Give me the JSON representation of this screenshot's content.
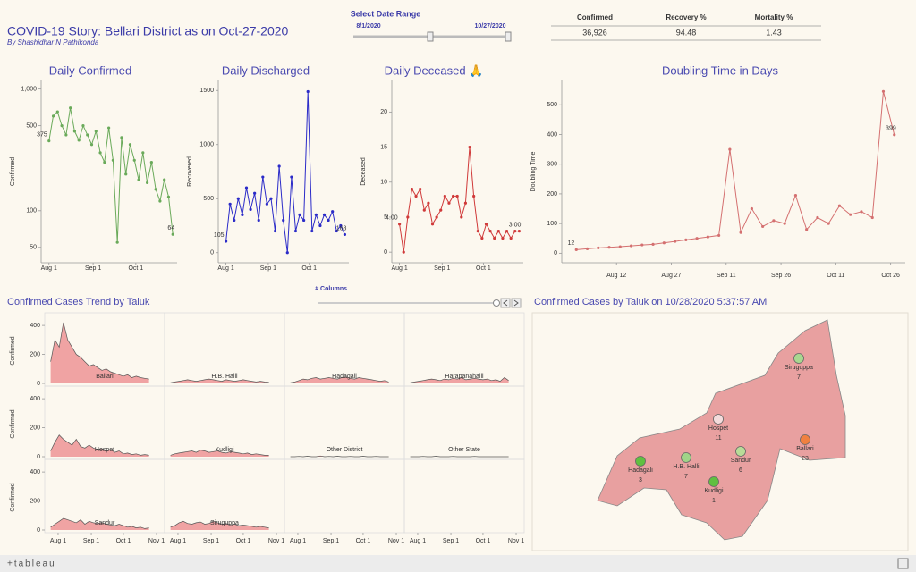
{
  "header": {
    "title": "COVID-19 Story: Bellari District as on Oct-27-2020",
    "byline": "By Shashidhar N Pathikonda"
  },
  "date_range": {
    "label": "Select Date Range",
    "start": "8/1/2020",
    "end": "10/27/2020"
  },
  "kpi": {
    "headers": [
      "Confirmed",
      "Recovery %",
      "Mortality %"
    ],
    "values": [
      "36,926",
      "94.48",
      "1.43"
    ]
  },
  "chart_data": [
    {
      "type": "line",
      "title": "Daily Confirmed",
      "y_label": "Confirmed",
      "color": "#6aaa5a",
      "log_scale": true,
      "x": [
        "Aug 1",
        "Aug 4",
        "Aug 7",
        "Aug 10",
        "Aug 13",
        "Aug 16",
        "Aug 19",
        "Aug 22",
        "Aug 25",
        "Aug 28",
        "Aug 31",
        "Sep 3",
        "Sep 6",
        "Sep 9",
        "Sep 12",
        "Sep 15",
        "Sep 18",
        "Sep 21",
        "Sep 24",
        "Sep 27",
        "Sep 30",
        "Oct 3",
        "Oct 6",
        "Oct 9",
        "Oct 12",
        "Oct 15",
        "Oct 18",
        "Oct 21",
        "Oct 24",
        "Oct 27"
      ],
      "values": [
        375,
        600,
        650,
        500,
        420,
        700,
        450,
        380,
        500,
        420,
        350,
        450,
        300,
        250,
        480,
        260,
        55,
        400,
        200,
        350,
        260,
        180,
        300,
        170,
        250,
        150,
        120,
        180,
        130,
        64
      ],
      "xlim": [
        "Jul 29",
        "Oct 30"
      ],
      "xticks": [
        "Aug 1",
        "Sep 1",
        "Oct 1"
      ],
      "ylim": [
        40,
        1100
      ],
      "yticks": [
        50,
        100,
        500,
        {
          "value": 1000,
          "label": "1,000"
        }
      ]
    },
    {
      "type": "line",
      "title": "Daily Discharged",
      "y_label": "Recovered",
      "color": "#2b2bc8",
      "annotation": "# Columns",
      "x": [
        "Aug 1",
        "Aug 4",
        "Aug 7",
        "Aug 10",
        "Aug 13",
        "Aug 16",
        "Aug 19",
        "Aug 22",
        "Aug 25",
        "Aug 28",
        "Aug 31",
        "Sep 3",
        "Sep 6",
        "Sep 9",
        "Sep 12",
        "Sep 15",
        "Sep 18",
        "Sep 21",
        "Sep 24",
        "Sep 27",
        "Sep 30",
        "Oct 3",
        "Oct 6",
        "Oct 9",
        "Oct 12",
        "Oct 15",
        "Oct 18",
        "Oct 21",
        "Oct 24",
        "Oct 27"
      ],
      "values": [
        105,
        450,
        300,
        500,
        350,
        600,
        400,
        550,
        300,
        700,
        450,
        500,
        200,
        800,
        300,
        0,
        700,
        200,
        350,
        300,
        1490,
        200,
        350,
        250,
        350,
        300,
        380,
        200,
        250,
        168
      ],
      "xlim": [
        "Jul 29",
        "Oct 30"
      ],
      "xticks": [
        "Aug 1",
        "Sep 1",
        "Oct 1"
      ],
      "ylim": [
        -60,
        1560
      ],
      "yticks": [
        0,
        500,
        1000,
        1500
      ]
    },
    {
      "type": "line",
      "title": "Daily Deceased 🙏",
      "y_label": "Deceased",
      "color": "#d03a3a",
      "x": [
        "Aug 1",
        "Aug 4",
        "Aug 7",
        "Aug 10",
        "Aug 13",
        "Aug 16",
        "Aug 19",
        "Aug 22",
        "Aug 25",
        "Aug 28",
        "Aug 31",
        "Sep 3",
        "Sep 6",
        "Sep 9",
        "Sep 12",
        "Sep 15",
        "Sep 18",
        "Sep 21",
        "Sep 24",
        "Sep 27",
        "Sep 30",
        "Oct 3",
        "Oct 6",
        "Oct 9",
        "Oct 12",
        "Oct 15",
        "Oct 18",
        "Oct 21",
        "Oct 24",
        "Oct 27"
      ],
      "values": [
        4,
        0,
        5,
        9,
        8,
        9,
        6,
        7,
        4,
        5,
        6,
        8,
        7,
        8,
        8,
        5,
        7,
        15,
        8,
        3,
        2,
        4,
        3,
        2,
        3,
        2,
        3,
        2,
        3,
        3
      ],
      "value_labels": [
        "4.00",
        null,
        null,
        null,
        null,
        null,
        null,
        null,
        null,
        null,
        null,
        null,
        null,
        null,
        null,
        null,
        null,
        null,
        null,
        null,
        null,
        null,
        null,
        null,
        null,
        null,
        null,
        null,
        null,
        "3.00"
      ],
      "xlim": [
        "Jul 29",
        "Oct 30"
      ],
      "xticks": [
        "Aug 1",
        "Sep 1",
        "Oct 1"
      ],
      "ylim": [
        -1,
        24
      ],
      "yticks": [
        0,
        5,
        10,
        15,
        20
      ]
    },
    {
      "type": "line",
      "title": "Doubling Time in Days",
      "y_label": "Doubling Time",
      "color": "#d47070",
      "x": [
        "Aug 1",
        "Aug 4",
        "Aug 7",
        "Aug 10",
        "Aug 13",
        "Aug 16",
        "Aug 19",
        "Aug 22",
        "Aug 25",
        "Aug 28",
        "Aug 31",
        "Sep 3",
        "Sep 6",
        "Sep 9",
        "Sep 12",
        "Sep 15",
        "Sep 18",
        "Sep 21",
        "Sep 24",
        "Sep 27",
        "Sep 30",
        "Oct 3",
        "Oct 6",
        "Oct 9",
        "Oct 12",
        "Oct 15",
        "Oct 18",
        "Oct 21",
        "Oct 24",
        "Oct 27"
      ],
      "values": [
        12,
        15,
        18,
        20,
        22,
        25,
        28,
        30,
        35,
        40,
        45,
        50,
        55,
        60,
        350,
        70,
        150,
        90,
        110,
        100,
        195,
        80,
        120,
        100,
        160,
        130,
        140,
        120,
        545,
        399
      ],
      "xlim": [
        "Jul 29",
        "Oct 30"
      ],
      "xticks": [
        "Aug 12",
        "Aug 27",
        "Sep 11",
        "Sep 26",
        "Oct 11",
        "Oct 26"
      ],
      "ylim": [
        -20,
        570
      ],
      "yticks": [
        0,
        100,
        200,
        300,
        400,
        500
      ]
    },
    {
      "type": "area",
      "title": "Confirmed Cases Trend by Taluk",
      "y_label": "Confirmed",
      "color": "#f0a3a3",
      "line_color": "#555555",
      "x": [
        "Jul 25",
        "Jul 29",
        "Aug 2",
        "Aug 6",
        "Aug 10",
        "Aug 14",
        "Aug 18",
        "Aug 22",
        "Aug 26",
        "Aug 30",
        "Sep 3",
        "Sep 7",
        "Sep 11",
        "Sep 15",
        "Sep 19",
        "Sep 23",
        "Sep 27",
        "Oct 1",
        "Oct 5",
        "Oct 9",
        "Oct 13",
        "Oct 17",
        "Oct 21",
        "Oct 25"
      ],
      "xlim": [
        "Jul 22",
        "Nov 6"
      ],
      "xticks": [
        "Aug 1",
        "Sep 1",
        "Oct 1",
        "Nov 1"
      ],
      "ylim": [
        0,
        450
      ],
      "yticks": [
        0,
        200,
        400
      ],
      "series": [
        {
          "name": "Ballari",
          "values": [
            150,
            300,
            250,
            420,
            300,
            250,
            200,
            180,
            150,
            120,
            130,
            110,
            90,
            100,
            80,
            70,
            60,
            50,
            60,
            40,
            50,
            40,
            35,
            30
          ]
        },
        {
          "name": "H.B. Halli",
          "values": [
            5,
            10,
            15,
            20,
            25,
            20,
            15,
            20,
            25,
            30,
            25,
            20,
            15,
            25,
            20,
            15,
            20,
            25,
            20,
            15,
            10,
            15,
            10,
            8
          ]
        },
        {
          "name": "Hadagali",
          "values": [
            5,
            10,
            20,
            30,
            25,
            35,
            40,
            30,
            35,
            40,
            35,
            30,
            40,
            45,
            35,
            30,
            40,
            35,
            30,
            25,
            20,
            15,
            20,
            10
          ]
        },
        {
          "name": "Harapanahalli",
          "values": [
            5,
            10,
            15,
            20,
            25,
            30,
            25,
            20,
            30,
            25,
            35,
            30,
            40,
            25,
            30,
            35,
            30,
            25,
            30,
            20,
            25,
            15,
            40,
            20
          ]
        },
        {
          "name": "Hospet",
          "values": [
            40,
            100,
            150,
            120,
            100,
            80,
            120,
            70,
            60,
            80,
            60,
            50,
            55,
            40,
            50,
            30,
            40,
            20,
            25,
            15,
            20,
            10,
            15,
            10
          ]
        },
        {
          "name": "Kudligi",
          "values": [
            10,
            20,
            25,
            30,
            35,
            40,
            30,
            45,
            40,
            30,
            35,
            40,
            30,
            25,
            35,
            30,
            25,
            20,
            25,
            15,
            20,
            15,
            10,
            10
          ]
        },
        {
          "name": "Other District",
          "values": [
            0,
            0,
            2,
            0,
            3,
            0,
            0,
            5,
            0,
            2,
            0,
            3,
            0,
            0,
            2,
            0,
            0,
            3,
            0,
            0,
            2,
            0,
            0,
            0
          ]
        },
        {
          "name": "Other State",
          "values": [
            0,
            0,
            0,
            2,
            0,
            0,
            3,
            0,
            0,
            0,
            2,
            0,
            0,
            0,
            0,
            2,
            0,
            0,
            0,
            0,
            0,
            0,
            0,
            0
          ]
        },
        {
          "name": "Sandur",
          "values": [
            20,
            40,
            60,
            80,
            70,
            60,
            50,
            70,
            40,
            60,
            50,
            45,
            50,
            40,
            35,
            30,
            40,
            30,
            20,
            25,
            15,
            20,
            10,
            15
          ]
        },
        {
          "name": "Siruguppa",
          "values": [
            20,
            30,
            50,
            60,
            45,
            40,
            50,
            55,
            40,
            45,
            60,
            50,
            40,
            45,
            35,
            40,
            30,
            35,
            30,
            25,
            20,
            25,
            20,
            15
          ]
        }
      ]
    }
  ],
  "map": {
    "title": "Confirmed Cases by Taluk on 10/28/2020 5:37:57 AM",
    "points": [
      {
        "name": "Siruguppa",
        "value": 7,
        "color": "#a8d890"
      },
      {
        "name": "Hospet",
        "value": 11,
        "color": "#f4dcdc"
      },
      {
        "name": "Ballari",
        "value": 23,
        "color": "#f08040"
      },
      {
        "name": "Sandur",
        "value": 6,
        "color": "#b8dc98"
      },
      {
        "name": "H.B. Halli",
        "value": 7,
        "color": "#a0d488"
      },
      {
        "name": "Hadagali",
        "value": 3,
        "color": "#60c040"
      },
      {
        "name": "Kudligi",
        "value": 1,
        "color": "#60c040"
      }
    ]
  },
  "footer": {
    "logo": "+tableau"
  }
}
